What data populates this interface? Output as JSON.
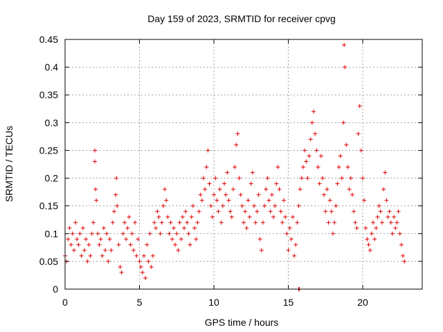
{
  "chart_data": {
    "type": "scatter",
    "title": "Day 159 of 2023, SRMTID for receiver cpvg",
    "xlabel": "GPS time / hours",
    "ylabel": "SRMTID / TECUs",
    "xlim": [
      0,
      24
    ],
    "ylim": [
      0,
      0.45
    ],
    "x_ticks": [
      0,
      5,
      10,
      15,
      20
    ],
    "x_tick_labels": [
      "0",
      "5",
      "10",
      "15",
      "20"
    ],
    "y_ticks": [
      0,
      0.05,
      0.1,
      0.15,
      0.2,
      0.25,
      0.3,
      0.35,
      0.4,
      0.45
    ],
    "y_tick_labels": [
      "0",
      "0.05",
      "0.1",
      "0.15",
      "0.2",
      "0.25",
      "0.3",
      "0.35",
      "0.4",
      "0.45"
    ],
    "grid": true,
    "marker": "+",
    "color": "#e00000",
    "series": [
      {
        "name": "SRMTID",
        "x": [
          0.0,
          0.1,
          0.2,
          0.3,
          0.4,
          0.5,
          0.6,
          0.7,
          0.8,
          0.9,
          1.0,
          1.1,
          1.2,
          1.3,
          1.4,
          1.5,
          1.6,
          1.7,
          1.8,
          1.9,
          2.0,
          2.0,
          2.05,
          2.1,
          2.2,
          2.3,
          2.4,
          2.5,
          2.6,
          2.7,
          2.8,
          2.9,
          3.0,
          3.1,
          3.2,
          3.3,
          3.4,
          3.45,
          3.5,
          3.6,
          3.7,
          3.8,
          3.9,
          4.0,
          4.1,
          4.2,
          4.3,
          4.4,
          4.5,
          4.6,
          4.7,
          4.8,
          4.9,
          5.0,
          5.1,
          5.2,
          5.3,
          5.4,
          5.5,
          5.6,
          5.7,
          5.8,
          5.9,
          6.0,
          6.1,
          6.2,
          6.3,
          6.4,
          6.5,
          6.6,
          6.7,
          6.8,
          6.9,
          7.0,
          7.1,
          7.2,
          7.3,
          7.4,
          7.5,
          7.6,
          7.7,
          7.8,
          7.9,
          8.0,
          8.1,
          8.2,
          8.3,
          8.4,
          8.5,
          8.6,
          8.7,
          8.8,
          8.9,
          9.0,
          9.1,
          9.2,
          9.3,
          9.4,
          9.5,
          9.6,
          9.7,
          9.8,
          9.9,
          10.0,
          10.1,
          10.2,
          10.3,
          10.4,
          10.5,
          10.6,
          10.7,
          10.8,
          10.9,
          11.0,
          11.1,
          11.2,
          11.3,
          11.4,
          11.5,
          11.6,
          11.7,
          11.8,
          11.9,
          12.0,
          12.1,
          12.2,
          12.3,
          12.4,
          12.5,
          12.6,
          12.7,
          12.8,
          12.9,
          13.0,
          13.1,
          13.2,
          13.3,
          13.4,
          13.5,
          13.6,
          13.7,
          13.8,
          13.9,
          14.0,
          14.1,
          14.2,
          14.3,
          14.4,
          14.5,
          14.6,
          14.7,
          14.8,
          14.9,
          15.0,
          15.1,
          15.2,
          15.3,
          15.4,
          15.5,
          15.6,
          15.7,
          15.8,
          15.9,
          16.0,
          16.1,
          16.2,
          16.3,
          16.4,
          16.5,
          16.6,
          16.7,
          16.8,
          16.9,
          17.0,
          17.1,
          17.2,
          17.3,
          17.4,
          17.5,
          17.6,
          17.7,
          17.8,
          17.9,
          18.0,
          18.1,
          18.2,
          18.3,
          18.4,
          18.5,
          18.6,
          18.7,
          18.75,
          18.8,
          18.9,
          19.0,
          19.1,
          19.2,
          19.3,
          19.4,
          19.5,
          19.6,
          19.7,
          19.8,
          19.9,
          20.0,
          20.1,
          20.2,
          20.3,
          20.4,
          20.5,
          20.6,
          20.7,
          20.8,
          20.9,
          21.0,
          21.1,
          21.2,
          21.3,
          21.4,
          21.5,
          21.6,
          21.7,
          21.8,
          21.9,
          22.0,
          22.1,
          22.2,
          22.3,
          22.4,
          22.5,
          22.6,
          22.7,
          22.8,
          15.7,
          15.75
        ],
        "y": [
          0.06,
          0.05,
          0.09,
          0.11,
          0.08,
          0.1,
          0.07,
          0.12,
          0.09,
          0.08,
          0.1,
          0.06,
          0.11,
          0.07,
          0.09,
          0.05,
          0.08,
          0.06,
          0.1,
          0.12,
          0.23,
          0.25,
          0.18,
          0.16,
          0.1,
          0.08,
          0.09,
          0.06,
          0.11,
          0.07,
          0.1,
          0.05,
          0.09,
          0.07,
          0.12,
          0.14,
          0.17,
          0.2,
          0.15,
          0.08,
          0.04,
          0.03,
          0.1,
          0.12,
          0.09,
          0.11,
          0.13,
          0.08,
          0.1,
          0.07,
          0.12,
          0.06,
          0.09,
          0.05,
          0.04,
          0.03,
          0.06,
          0.02,
          0.08,
          0.05,
          0.1,
          0.04,
          0.06,
          0.12,
          0.11,
          0.14,
          0.13,
          0.1,
          0.12,
          0.15,
          0.18,
          0.16,
          0.13,
          0.1,
          0.12,
          0.09,
          0.11,
          0.08,
          0.1,
          0.07,
          0.12,
          0.09,
          0.13,
          0.11,
          0.14,
          0.12,
          0.1,
          0.08,
          0.13,
          0.15,
          0.11,
          0.09,
          0.12,
          0.14,
          0.17,
          0.16,
          0.2,
          0.18,
          0.22,
          0.25,
          0.19,
          0.15,
          0.13,
          0.17,
          0.2,
          0.16,
          0.14,
          0.18,
          0.12,
          0.15,
          0.19,
          0.17,
          0.21,
          0.16,
          0.14,
          0.13,
          0.18,
          0.22,
          0.26,
          0.28,
          0.2,
          0.17,
          0.15,
          0.12,
          0.14,
          0.11,
          0.16,
          0.13,
          0.19,
          0.21,
          0.15,
          0.12,
          0.14,
          0.17,
          0.09,
          0.07,
          0.12,
          0.15,
          0.18,
          0.2,
          0.16,
          0.14,
          0.17,
          0.13,
          0.15,
          0.19,
          0.22,
          0.18,
          0.14,
          0.12,
          0.16,
          0.13,
          0.1,
          0.07,
          0.11,
          0.09,
          0.13,
          0.06,
          0.08,
          0.12,
          0.15,
          0.18,
          0.2,
          0.22,
          0.25,
          0.23,
          0.2,
          0.24,
          0.27,
          0.3,
          0.32,
          0.28,
          0.25,
          0.22,
          0.19,
          0.24,
          0.2,
          0.17,
          0.14,
          0.18,
          0.12,
          0.16,
          0.14,
          0.1,
          0.12,
          0.15,
          0.19,
          0.22,
          0.24,
          0.2,
          0.3,
          0.44,
          0.4,
          0.26,
          0.22,
          0.18,
          0.2,
          0.17,
          0.14,
          0.12,
          0.11,
          0.28,
          0.33,
          0.25,
          0.2,
          0.16,
          0.11,
          0.09,
          0.08,
          0.07,
          0.1,
          0.12,
          0.09,
          0.11,
          0.13,
          0.15,
          0.14,
          0.12,
          0.18,
          0.21,
          0.16,
          0.13,
          0.14,
          0.12,
          0.1,
          0.13,
          0.11,
          0.12,
          0.14,
          0.1,
          0.08,
          0.06,
          0.05,
          0.0,
          0.0
        ]
      }
    ]
  }
}
